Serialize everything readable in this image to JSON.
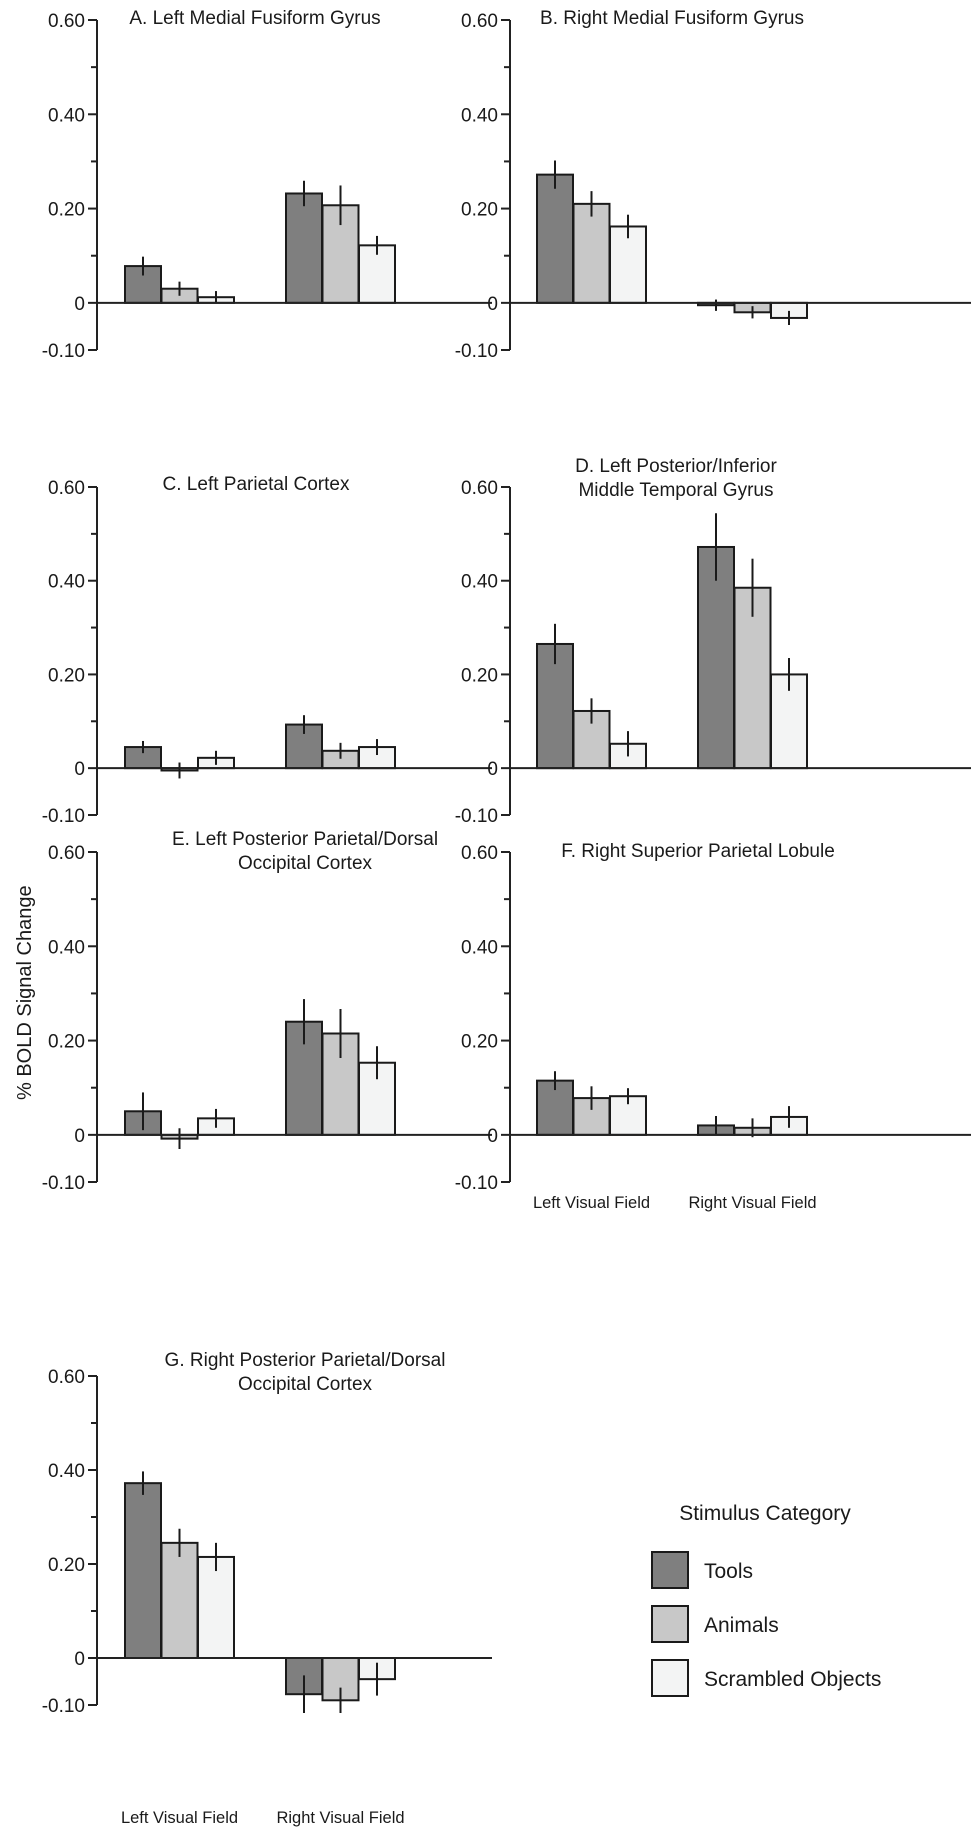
{
  "y_axis_label": "% BOLD Signal Change",
  "legend": {
    "title": "Stimulus Category",
    "items": [
      {
        "label": "Tools",
        "color": "#7f7f7f"
      },
      {
        "label": "Animals",
        "color": "#c8c8c8"
      },
      {
        "label": "Scrambled Objects",
        "color": "#f3f4f4"
      }
    ]
  },
  "chart_data": [
    {
      "type": "bar",
      "panel": "A",
      "title_lines": [
        "A. Left Medial Fusiform Gyrus"
      ],
      "categories": [
        "Left Visual Field",
        "Right Visual Field"
      ],
      "show_category_labels": false,
      "ylim": [
        -0.1,
        0.6
      ],
      "yticks": [
        {
          "value": 0.6,
          "label": "0.60"
        },
        {
          "value": 0.4,
          "label": "0.40"
        },
        {
          "value": 0.2,
          "label": "0.20"
        },
        {
          "value": 0,
          "label": "0"
        },
        {
          "value": -0.1,
          "label": "-0.10"
        }
      ],
      "series": [
        {
          "name": "Tools",
          "values": [
            0.078,
            0.232
          ],
          "errors": [
            0.02,
            0.027
          ]
        },
        {
          "name": "Animals",
          "values": [
            0.03,
            0.207
          ],
          "errors": [
            0.015,
            0.042
          ]
        },
        {
          "name": "Scrambled Objects",
          "values": [
            0.012,
            0.122
          ],
          "errors": [
            0.013,
            0.02
          ]
        }
      ]
    },
    {
      "type": "bar",
      "panel": "B",
      "title_lines": [
        "B. Right Medial Fusiform Gyrus"
      ],
      "categories": [
        "Left Visual Field",
        "Right Visual Field"
      ],
      "show_category_labels": false,
      "ylim": [
        -0.1,
        0.6
      ],
      "yticks": [
        {
          "value": 0.6,
          "label": "0.60"
        },
        {
          "value": 0.4,
          "label": "0.40"
        },
        {
          "value": 0.2,
          "label": "0.20"
        },
        {
          "value": 0,
          "label": "0"
        },
        {
          "value": -0.1,
          "label": "-0.10"
        }
      ],
      "series": [
        {
          "name": "Tools",
          "values": [
            0.272,
            -0.005
          ],
          "errors": [
            0.03,
            0.012
          ]
        },
        {
          "name": "Animals",
          "values": [
            0.21,
            -0.02
          ],
          "errors": [
            0.027,
            0.013
          ]
        },
        {
          "name": "Scrambled Objects",
          "values": [
            0.162,
            -0.032
          ],
          "errors": [
            0.025,
            0.015
          ]
        }
      ]
    },
    {
      "type": "bar",
      "panel": "C",
      "title_lines": [
        "C. Left Parietal Cortex"
      ],
      "categories": [
        "Left Visual Field",
        "Right Visual Field"
      ],
      "show_category_labels": false,
      "ylim": [
        -0.1,
        0.6
      ],
      "yticks": [
        {
          "value": 0.6,
          "label": "0.60"
        },
        {
          "value": 0.4,
          "label": "0.40"
        },
        {
          "value": 0.2,
          "label": "0.20"
        },
        {
          "value": 0,
          "label": "0"
        },
        {
          "value": -0.1,
          "label": "-0.10"
        }
      ],
      "series": [
        {
          "name": "Tools",
          "values": [
            0.045,
            0.093
          ],
          "errors": [
            0.013,
            0.02
          ]
        },
        {
          "name": "Animals",
          "values": [
            -0.005,
            0.037
          ],
          "errors": [
            0.017,
            0.017
          ]
        },
        {
          "name": "Scrambled Objects",
          "values": [
            0.022,
            0.045
          ],
          "errors": [
            0.015,
            0.017
          ]
        }
      ]
    },
    {
      "type": "bar",
      "panel": "D",
      "title_lines": [
        "D. Left Posterior/Inferior",
        "Middle Temporal Gyrus"
      ],
      "categories": [
        "Left Visual Field",
        "Right Visual Field"
      ],
      "show_category_labels": false,
      "ylim": [
        -0.1,
        0.6
      ],
      "yticks": [
        {
          "value": 0.6,
          "label": "0.60"
        },
        {
          "value": 0.4,
          "label": "0.40"
        },
        {
          "value": 0.2,
          "label": "0.20"
        },
        {
          "value": 0,
          "label": "0"
        },
        {
          "value": -0.1,
          "label": "-0.10"
        }
      ],
      "series": [
        {
          "name": "Tools",
          "values": [
            0.265,
            0.472
          ],
          "errors": [
            0.043,
            0.072
          ]
        },
        {
          "name": "Animals",
          "values": [
            0.122,
            0.385
          ],
          "errors": [
            0.027,
            0.062
          ]
        },
        {
          "name": "Scrambled Objects",
          "values": [
            0.052,
            0.2
          ],
          "errors": [
            0.027,
            0.035
          ]
        }
      ]
    },
    {
      "type": "bar",
      "panel": "E",
      "title_lines": [
        "E. Left Posterior Parietal/Dorsal",
        "Occipital Cortex"
      ],
      "categories": [
        "Left Visual Field",
        "Right Visual Field"
      ],
      "show_category_labels": false,
      "ylim": [
        -0.1,
        0.6
      ],
      "yticks": [
        {
          "value": 0.6,
          "label": "0.60"
        },
        {
          "value": 0.4,
          "label": "0.40"
        },
        {
          "value": 0.2,
          "label": "0.20"
        },
        {
          "value": 0,
          "label": "0"
        },
        {
          "value": -0.1,
          "label": "-0.10"
        }
      ],
      "series": [
        {
          "name": "Tools",
          "values": [
            0.05,
            0.24
          ],
          "errors": [
            0.04,
            0.048
          ]
        },
        {
          "name": "Animals",
          "values": [
            -0.008,
            0.215
          ],
          "errors": [
            0.022,
            0.052
          ]
        },
        {
          "name": "Scrambled Objects",
          "values": [
            0.035,
            0.153
          ],
          "errors": [
            0.02,
            0.035
          ]
        }
      ]
    },
    {
      "type": "bar",
      "panel": "F",
      "title_lines": [
        "F. Right Superior Parietal Lobule"
      ],
      "categories": [
        "Left Visual Field",
        "Right Visual Field"
      ],
      "show_category_labels": true,
      "ylim": [
        -0.1,
        0.6
      ],
      "yticks": [
        {
          "value": 0.6,
          "label": "0.60"
        },
        {
          "value": 0.4,
          "label": "0.40"
        },
        {
          "value": 0.2,
          "label": "0.20"
        },
        {
          "value": 0,
          "label": "0"
        },
        {
          "value": -0.1,
          "label": "-0.10"
        }
      ],
      "series": [
        {
          "name": "Tools",
          "values": [
            0.115,
            0.02
          ],
          "errors": [
            0.02,
            0.02
          ]
        },
        {
          "name": "Animals",
          "values": [
            0.078,
            0.015
          ],
          "errors": [
            0.025,
            0.02
          ]
        },
        {
          "name": "Scrambled Objects",
          "values": [
            0.082,
            0.038
          ],
          "errors": [
            0.017,
            0.023
          ]
        }
      ]
    },
    {
      "type": "bar",
      "panel": "G",
      "title_lines": [
        "G. Right Posterior Parietal/Dorsal",
        "Occipital Cortex"
      ],
      "categories": [
        "Left Visual Field",
        "Right Visual Field"
      ],
      "show_category_labels": true,
      "ylim": [
        -0.1,
        0.6
      ],
      "yticks": [
        {
          "value": 0.6,
          "label": "0.60"
        },
        {
          "value": 0.4,
          "label": "0.40"
        },
        {
          "value": 0.2,
          "label": "0.20"
        },
        {
          "value": 0,
          "label": "0"
        },
        {
          "value": -0.1,
          "label": "-0.10"
        }
      ],
      "series": [
        {
          "name": "Tools",
          "values": [
            0.372,
            -0.077
          ],
          "errors": [
            0.025,
            0.04
          ]
        },
        {
          "name": "Animals",
          "values": [
            0.245,
            -0.09
          ],
          "errors": [
            0.03,
            0.027
          ]
        },
        {
          "name": "Scrambled Objects",
          "values": [
            0.215,
            -0.045
          ],
          "errors": [
            0.03,
            0.035
          ]
        }
      ]
    }
  ]
}
